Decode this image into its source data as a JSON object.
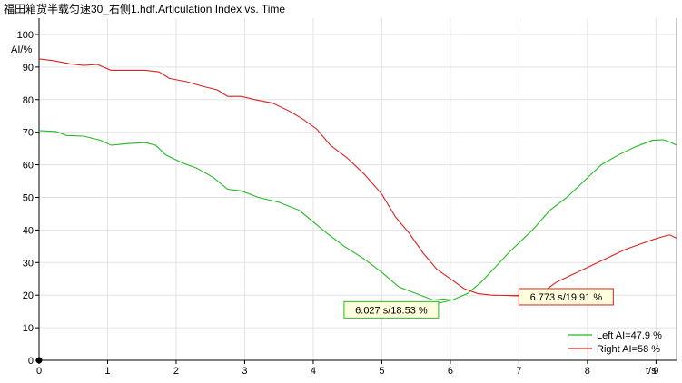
{
  "window": {
    "title": "福田箱货半载匀速30_右侧1.hdf.Articulation Index vs. Time"
  },
  "chart_data": {
    "type": "line",
    "title": "福田箱货半载匀速30_右侧1.hdf.Articulation Index vs. Time",
    "xlabel": "t/s",
    "ylabel": "AI/%",
    "xlim": [
      0,
      9.3
    ],
    "ylim": [
      0,
      105
    ],
    "x_ticks": [
      "0",
      "1",
      "2",
      "3",
      "4",
      "5",
      "6",
      "7",
      "8",
      "9"
    ],
    "y_ticks": [
      "0",
      "10",
      "20",
      "30",
      "40",
      "50",
      "60",
      "70",
      "80",
      "90",
      "100"
    ],
    "grid": true,
    "legend_position": "bottom-right",
    "series": [
      {
        "name": "Left AI=47.9 %",
        "color": "#22bb22",
        "x": [
          0,
          0.25,
          0.4,
          0.65,
          0.9,
          1.05,
          1.3,
          1.55,
          1.7,
          1.85,
          2.1,
          2.3,
          2.55,
          2.75,
          2.95,
          3.2,
          3.5,
          3.8,
          4.0,
          4.2,
          4.45,
          4.75,
          5.0,
          5.25,
          5.5,
          5.75,
          5.9,
          6.03,
          6.25,
          6.45,
          6.65,
          6.85,
          7.0,
          7.2,
          7.45,
          7.7,
          7.95,
          8.2,
          8.45,
          8.7,
          8.95,
          9.1,
          9.2,
          9.3
        ],
        "values": [
          70.5,
          70.2,
          69.0,
          68.8,
          67.5,
          66.0,
          66.5,
          66.8,
          66.0,
          63.0,
          60.5,
          59.0,
          56.0,
          52.5,
          52.0,
          50.0,
          48.5,
          46.0,
          42.5,
          39.0,
          35.0,
          31.0,
          27.0,
          22.5,
          20.5,
          18.5,
          18.8,
          18.53,
          20.5,
          24.0,
          28.5,
          33.0,
          36.0,
          40.0,
          46.0,
          50.0,
          55.0,
          60.0,
          63.0,
          65.5,
          67.5,
          67.7,
          67.0,
          66.0
        ]
      },
      {
        "name": "Right AI=58 %",
        "color": "#dd2222",
        "x": [
          0,
          0.2,
          0.45,
          0.65,
          0.85,
          1.05,
          1.3,
          1.55,
          1.75,
          1.9,
          2.15,
          2.4,
          2.6,
          2.75,
          2.95,
          3.15,
          3.4,
          3.65,
          3.85,
          4.05,
          4.25,
          4.5,
          4.75,
          5.0,
          5.2,
          5.4,
          5.6,
          5.8,
          6.0,
          6.2,
          6.4,
          6.6,
          6.77,
          6.95,
          7.15,
          7.35,
          7.55,
          7.75,
          7.95,
          8.15,
          8.35,
          8.55,
          8.75,
          8.95,
          9.1,
          9.2,
          9.3
        ],
        "values": [
          92.5,
          92.0,
          91.0,
          90.5,
          90.8,
          89.0,
          89.0,
          89.0,
          88.5,
          86.5,
          85.5,
          84.0,
          83.0,
          81.0,
          81.0,
          80.0,
          79.0,
          76.5,
          74.0,
          71.0,
          66.0,
          62.0,
          57.0,
          51.0,
          44.0,
          39.0,
          33.0,
          28.0,
          25.0,
          22.0,
          20.5,
          20.0,
          19.91,
          19.9,
          20.0,
          21.0,
          24.0,
          26.0,
          28.0,
          30.0,
          32.0,
          34.0,
          35.5,
          37.0,
          38.0,
          38.5,
          37.5
        ]
      }
    ],
    "annotations": [
      {
        "text": "6.027 s/18.53 %",
        "x": 6.027,
        "y": 18.53,
        "series": 0,
        "label_x": 4.45,
        "label_y": 13
      },
      {
        "text": "6.773 s/19.91 %",
        "x": 6.773,
        "y": 19.91,
        "series": 1,
        "label_x": 7.0,
        "label_y": 17
      }
    ]
  }
}
